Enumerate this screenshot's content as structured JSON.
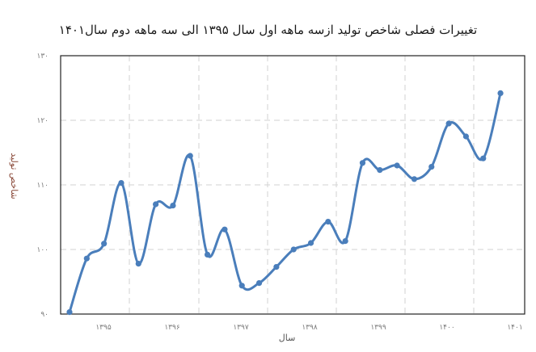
{
  "chart_data": {
    "type": "line",
    "title": "تغییرات فصلی شاخص تولید ازسه ماهه اول سال ۱۳۹۵ الی سه ماهه دوم سال۱۴۰۱",
    "xlabel": "سال",
    "ylabel": "شاخص تولید",
    "ylim": [
      90,
      130
    ],
    "yticks": [
      90,
      100,
      110,
      120,
      130
    ],
    "ytick_labels": [
      "۹۰",
      "۱۰۰",
      "۱۱۰",
      "۱۲۰",
      "۱۳۰"
    ],
    "xtick_labels": [
      "۱۳۹۵",
      "۱۳۹۶",
      "۱۳۹۷",
      "۱۳۹۸",
      "۱۳۹۹",
      "۱۴۰۰",
      "۱۴۰۱"
    ],
    "grid": true,
    "legend": null,
    "line_color": "#4a7ebb",
    "x": [
      "1395-Q1",
      "1395-Q2",
      "1395-Q3",
      "1395-Q4",
      "1396-Q1",
      "1396-Q2",
      "1396-Q3",
      "1396-Q4",
      "1397-Q1",
      "1397-Q2",
      "1397-Q3",
      "1397-Q4",
      "1398-Q1",
      "1398-Q2",
      "1398-Q3",
      "1398-Q4",
      "1399-Q1",
      "1399-Q2",
      "1399-Q3",
      "1399-Q4",
      "1400-Q1",
      "1400-Q2",
      "1400-Q3",
      "1400-Q4",
      "1401-Q1",
      "1401-Q2"
    ],
    "series": [
      {
        "name": "شاخص تولید",
        "values": [
          90.3,
          98.6,
          100.9,
          110.3,
          97.8,
          107.0,
          106.8,
          114.5,
          99.2,
          103.1,
          94.4,
          94.8,
          97.3,
          100.0,
          101.0,
          104.3,
          101.3,
          113.4,
          112.3,
          113.0,
          110.9,
          112.8,
          119.5,
          117.5,
          114.1,
          124.2
        ]
      }
    ]
  }
}
